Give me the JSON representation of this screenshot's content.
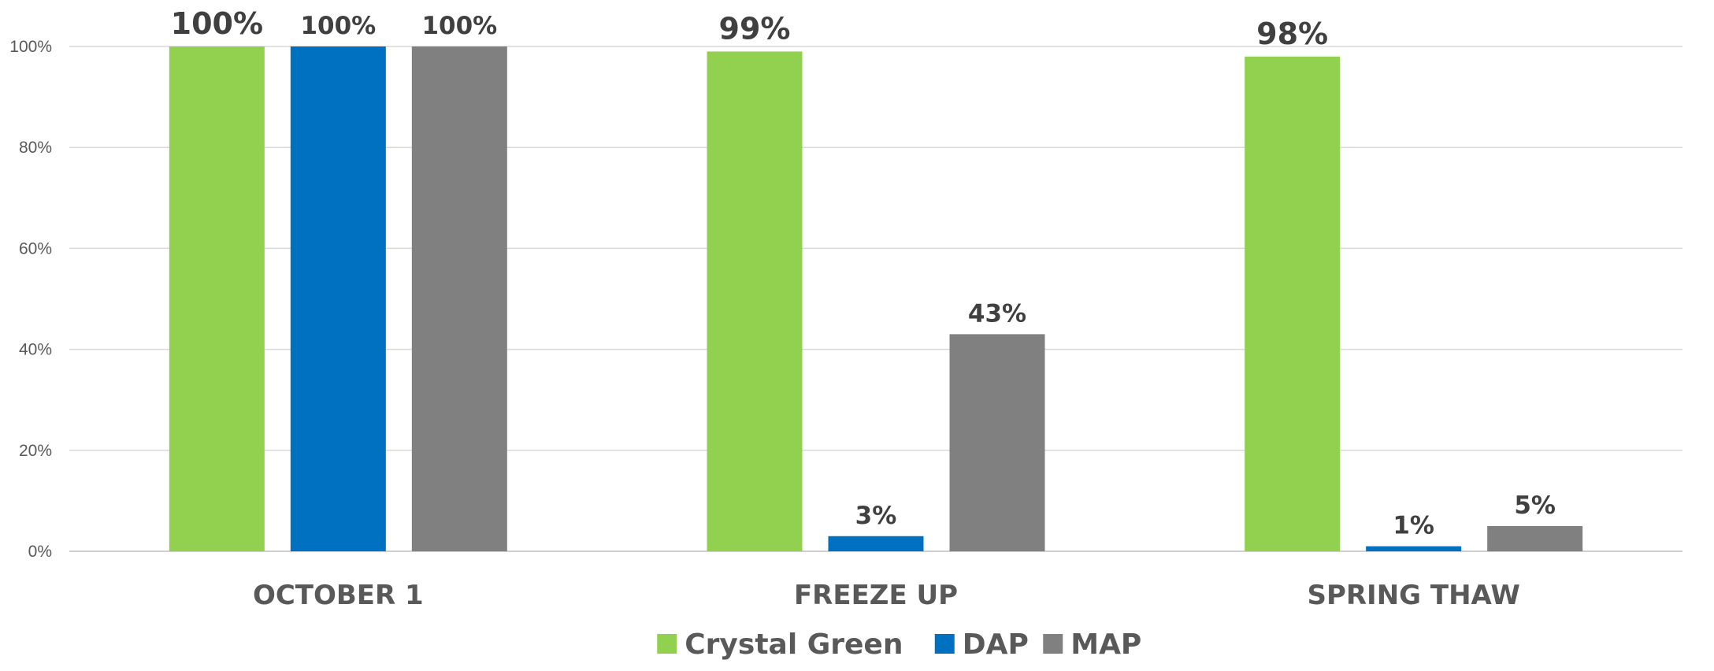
{
  "chart_data": {
    "type": "bar",
    "categories": [
      "OCTOBER 1",
      "FREEZE UP",
      "SPRING THAW"
    ],
    "series": [
      {
        "name": "Crystal Green",
        "color": "#92d050",
        "values": [
          100,
          99,
          98
        ],
        "labels": [
          "100%",
          "99%",
          "98%"
        ]
      },
      {
        "name": "DAP",
        "color": "#0070c0",
        "values": [
          100,
          3,
          1
        ],
        "labels": [
          "100%",
          "3%",
          "1%"
        ]
      },
      {
        "name": "MAP",
        "color": "#808080",
        "values": [
          100,
          43,
          5
        ],
        "labels": [
          "100%",
          "43%",
          "5%"
        ]
      }
    ],
    "y_ticks": [
      "0%",
      "20%",
      "40%",
      "60%",
      "80%",
      "100%"
    ],
    "ylim": [
      0,
      100
    ],
    "grid": true,
    "legend": "bottom-center",
    "title": "",
    "xlabel": "",
    "ylabel": ""
  }
}
